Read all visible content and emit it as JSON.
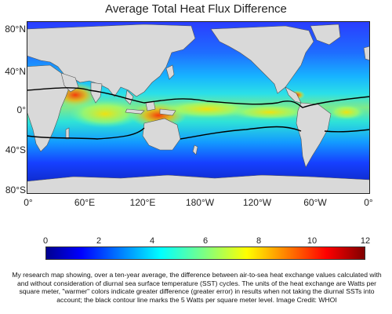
{
  "title": "Average Total Heat Flux Difference",
  "map": {
    "lat_labels": [
      "80°N",
      "40°N",
      "0°",
      "40°S",
      "80°S"
    ],
    "lon_labels": [
      "0°",
      "60°E",
      "120°E",
      "180°W",
      "120°W",
      "60°W",
      "0°"
    ],
    "land_color": "#d9d9d9",
    "contour_color": "#000000",
    "contour_level": "5 Watts per square meter"
  },
  "colorbar": {
    "ticks": [
      "0",
      "2",
      "4",
      "6",
      "8",
      "10",
      "12"
    ],
    "min": 0,
    "max": 12,
    "colormap": "jet"
  },
  "caption": "My research map showing, over a ten-year average, the difference between air-to-sea heat exchange values calculated with and without consideration of diurnal sea surface temperature (SST) cycles. The units of the heat exchange are Watts per square meter, \"warmer\" colors indicate greater difference (greater error) in results when not taking the diurnal SSTs into account; the black contour line marks the 5 Watts per square meter level.  Image Credit: WHOI"
}
